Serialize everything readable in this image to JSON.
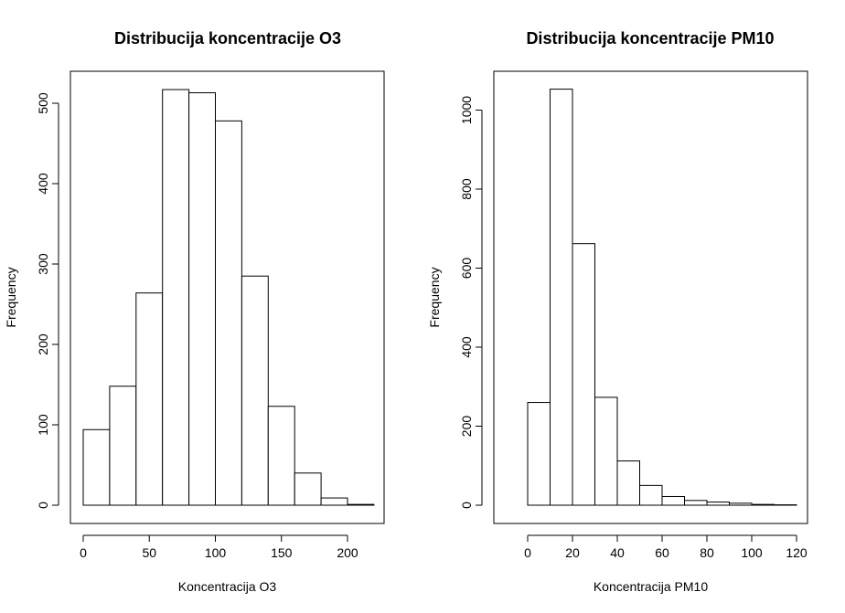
{
  "chart_data": [
    {
      "type": "bar",
      "title": "Distribucija koncentracije O3",
      "xlabel": "Koncentracija O3",
      "ylabel": "Frequency",
      "bin_edges": [
        0,
        20,
        40,
        60,
        80,
        100,
        120,
        140,
        160,
        180,
        200,
        220
      ],
      "values": [
        94,
        148,
        264,
        517,
        513,
        478,
        285,
        123,
        40,
        9,
        1
      ],
      "xlim": [
        0,
        220
      ],
      "ylim": [
        0,
        550
      ],
      "x_ticks": [
        0,
        50,
        100,
        150,
        200
      ],
      "y_ticks": [
        0,
        100,
        200,
        300,
        400,
        500
      ],
      "grid": false
    },
    {
      "type": "bar",
      "title": "Distribucija koncentracije PM10",
      "xlabel": "Koncentracija PM10",
      "ylabel": "Frequency",
      "bin_edges": [
        -10,
        0,
        10,
        20,
        30,
        40,
        50,
        60,
        70,
        80,
        90,
        100,
        110,
        120
      ],
      "values": [
        0,
        260,
        1053,
        662,
        273,
        112,
        50,
        22,
        12,
        8,
        5,
        2,
        1
      ],
      "xlim": [
        -10,
        120
      ],
      "ylim": [
        0,
        1100
      ],
      "x_ticks": [
        0,
        20,
        40,
        60,
        80,
        100,
        120
      ],
      "y_ticks": [
        0,
        200,
        400,
        600,
        800,
        1000
      ],
      "grid": false
    }
  ]
}
